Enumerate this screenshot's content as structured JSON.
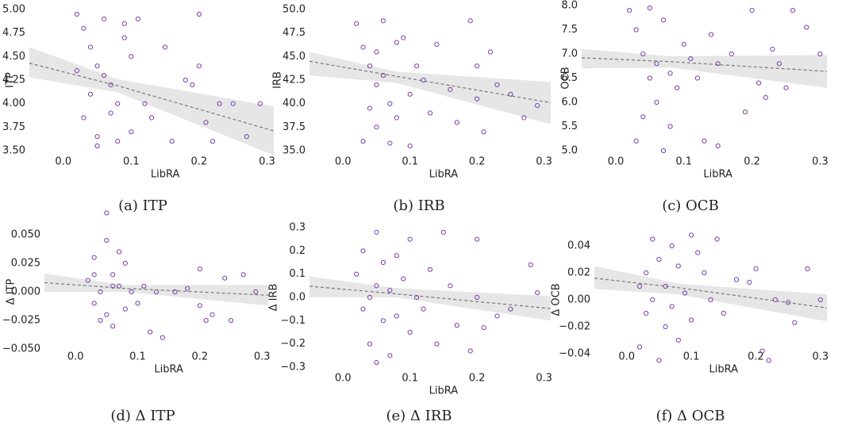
{
  "chart_data": [
    {
      "type": "scatter",
      "caption": "(a) ITP",
      "x_label": "LibRA",
      "y_label": "ITP",
      "color": "#7b3fa8",
      "xlim": [
        -0.05,
        0.31
      ],
      "ylim": [
        3.5,
        5.0
      ],
      "xticks": [
        {
          "value": 0,
          "label": "0.0"
        },
        0.1,
        0.2,
        0.3
      ],
      "yticks": [
        {
          "value": 3.5,
          "label": "3.50"
        },
        3.75,
        {
          "value": 4.0,
          "label": "4.00"
        },
        4.25,
        {
          "value": 4.5,
          "label": "4.50"
        },
        4.75,
        {
          "value": 5.0,
          "label": "5.00"
        }
      ],
      "x": [
        0.02,
        0.03,
        0.04,
        0.05,
        0.06,
        0.07,
        0.08,
        0.09,
        0.1,
        0.03,
        0.05,
        0.04,
        0.07,
        0.06,
        0.02,
        0.12,
        0.13,
        0.11,
        0.15,
        0.16,
        0.18,
        0.2,
        0.21,
        0.19,
        0.22,
        0.23,
        0.25,
        0.27,
        0.29,
        0.08,
        0.09,
        0.1,
        0.05,
        0.2
      ],
      "values": [
        4.95,
        4.8,
        4.6,
        4.4,
        4.9,
        4.2,
        4.0,
        4.7,
        4.5,
        3.85,
        3.65,
        4.1,
        3.9,
        4.3,
        4.35,
        4.0,
        3.85,
        4.9,
        4.6,
        3.6,
        4.25,
        4.95,
        3.8,
        4.2,
        3.6,
        4.0,
        4.0,
        3.65,
        4.0,
        3.6,
        4.85,
        3.7,
        3.55,
        4.4
      ],
      "trend_x": [
        -0.05,
        0.08,
        0.31
      ],
      "trend_y": [
        4.43,
        4.19,
        3.71
      ],
      "band_lower": [
        4.28,
        4.12,
        3.45
      ],
      "band_upper": [
        4.6,
        4.26,
        3.97
      ]
    },
    {
      "type": "scatter",
      "caption": "(b) IRB",
      "x_label": "LibRA",
      "y_label": "IRB",
      "color": "#7b3fa8",
      "xlim": [
        -0.05,
        0.31
      ],
      "ylim": [
        35,
        50
      ],
      "xticks": [
        {
          "value": 0,
          "label": "0.0"
        },
        0.1,
        0.2,
        0.3
      ],
      "yticks": [
        {
          "value": 35,
          "label": "35.0"
        },
        37.5,
        {
          "value": 40,
          "label": "40.0"
        },
        42.5,
        {
          "value": 45,
          "label": "45.0"
        },
        47.5,
        {
          "value": 50,
          "label": "50.0"
        }
      ],
      "x": [
        0.02,
        0.03,
        0.04,
        0.05,
        0.06,
        0.07,
        0.08,
        0.03,
        0.05,
        0.06,
        0.09,
        0.1,
        0.04,
        0.07,
        0.11,
        0.12,
        0.14,
        0.13,
        0.16,
        0.17,
        0.19,
        0.2,
        0.2,
        0.21,
        0.22,
        0.23,
        0.25,
        0.27,
        0.29,
        0.08,
        0.05,
        0.1
      ],
      "values": [
        48.5,
        46,
        44,
        42,
        48.8,
        40,
        38.5,
        36,
        45.5,
        43,
        47,
        41,
        39.5,
        35.8,
        44,
        42.5,
        46.3,
        39,
        41.5,
        38,
        48.8,
        44,
        40.5,
        37,
        45.5,
        42,
        41,
        38.5,
        39.8,
        46.5,
        37.5,
        35.5
      ],
      "trend_x": [
        -0.05,
        0.08,
        0.31
      ],
      "trend_y": [
        44.5,
        42.9,
        40.1
      ],
      "band_lower": [
        43.0,
        42.2,
        37.8
      ],
      "band_upper": [
        45.5,
        43.4,
        42.3
      ]
    },
    {
      "type": "scatter",
      "caption": "(c) OCB",
      "x_label": "LibRA",
      "y_label": "OCB",
      "color": "#7b3fa8",
      "xlim": [
        -0.05,
        0.31
      ],
      "ylim": [
        5,
        8
      ],
      "xticks": [
        {
          "value": 0,
          "label": "0.0"
        },
        0.1,
        0.2,
        0.3
      ],
      "yticks": [
        {
          "value": 5,
          "label": "5.0"
        },
        5.5,
        {
          "value": 6,
          "label": "6.0"
        },
        6.5,
        {
          "value": 7,
          "label": "7.0"
        },
        7.5,
        {
          "value": 8,
          "label": "8.0"
        }
      ],
      "x": [
        0.02,
        0.03,
        0.04,
        0.05,
        0.06,
        0.07,
        0.08,
        0.03,
        0.05,
        0.06,
        0.09,
        0.1,
        0.04,
        0.07,
        0.11,
        0.12,
        0.13,
        0.14,
        0.15,
        0.15,
        0.17,
        0.19,
        0.2,
        0.21,
        0.22,
        0.23,
        0.24,
        0.25,
        0.26,
        0.28,
        0.3,
        0.08
      ],
      "values": [
        7.9,
        7.5,
        7.0,
        6.5,
        6.0,
        7.7,
        5.5,
        5.2,
        7.95,
        6.8,
        6.3,
        7.2,
        5.7,
        5.0,
        6.9,
        6.5,
        5.2,
        7.4,
        6.8,
        5.1,
        7.0,
        5.8,
        7.9,
        6.4,
        6.1,
        7.1,
        6.8,
        6.3,
        7.9,
        7.55,
        7.0,
        6.6
      ],
      "trend_x": [
        -0.05,
        0.08,
        0.31
      ],
      "trend_y": [
        6.92,
        6.84,
        6.64
      ],
      "band_lower": [
        6.7,
        6.72,
        6.3
      ],
      "band_upper": [
        7.1,
        6.95,
        6.98
      ]
    },
    {
      "type": "scatter",
      "caption": "(d) Δ ITP",
      "x_label": "LibRA",
      "y_label": "Δ ITP",
      "color": "#7b3fa8",
      "xlim": [
        -0.05,
        0.31
      ],
      "ylim": [
        -0.07,
        0.07
      ],
      "xticks": [
        {
          "value": 0,
          "label": "0.0"
        },
        0.1,
        0.2,
        0.3
      ],
      "yticks": [
        {
          "value": -0.05,
          "label": "−0.050"
        },
        {
          "value": -0.025,
          "label": "−0.025"
        },
        {
          "value": 0,
          "label": "0.000"
        },
        0.025,
        {
          "value": 0.05,
          "label": "0.050"
        }
      ],
      "x": [
        0.02,
        0.03,
        0.03,
        0.04,
        0.05,
        0.05,
        0.06,
        0.06,
        0.07,
        0.07,
        0.08,
        0.08,
        0.09,
        0.05,
        0.04,
        0.1,
        0.11,
        0.12,
        0.13,
        0.14,
        0.16,
        0.18,
        0.2,
        0.2,
        0.21,
        0.22,
        0.24,
        0.25,
        0.27,
        0.29,
        0.03,
        0.06
      ],
      "values": [
        0.01,
        -0.01,
        0.03,
        0.0,
        0.045,
        -0.02,
        0.015,
        -0.03,
        0.005,
        0.035,
        -0.015,
        0.025,
        0.0,
        0.069,
        -0.025,
        -0.01,
        0.005,
        -0.035,
        0.0,
        -0.04,
        0.0,
        0.003,
        0.02,
        -0.012,
        -0.025,
        -0.02,
        0.012,
        -0.025,
        0.015,
        0.0,
        0.015,
        0.005
      ],
      "trend_x": [
        -0.05,
        0.08,
        0.31
      ],
      "trend_y": [
        0.008,
        0.003,
        -0.003
      ],
      "band_lower": [
        0.0,
        0.0,
        -0.012
      ],
      "band_upper": [
        0.016,
        0.006,
        0.006
      ]
    },
    {
      "type": "scatter",
      "caption": "(e) Δ IRB",
      "x_label": "LibRA",
      "y_label": "Δ IRB",
      "color": "#7b3fa8",
      "xlim": [
        -0.05,
        0.31
      ],
      "ylim": [
        -0.3,
        0.3
      ],
      "xticks": [
        {
          "value": 0,
          "label": "0.0"
        },
        0.1,
        0.2,
        0.3
      ],
      "yticks": [
        {
          "value": -0.3,
          "label": "−0.3"
        },
        {
          "value": -0.2,
          "label": "−0.2"
        },
        {
          "value": -0.1,
          "label": "−0.1"
        },
        {
          "value": 0,
          "label": "0.0"
        },
        0.1,
        0.2,
        0.3
      ],
      "x": [
        0.02,
        0.03,
        0.03,
        0.04,
        0.04,
        0.05,
        0.05,
        0.06,
        0.06,
        0.07,
        0.07,
        0.08,
        0.08,
        0.09,
        0.1,
        0.1,
        0.11,
        0.12,
        0.13,
        0.14,
        0.15,
        0.16,
        0.17,
        0.19,
        0.2,
        0.2,
        0.21,
        0.23,
        0.25,
        0.28,
        0.29,
        0.05
      ],
      "values": [
        0.1,
        -0.05,
        0.2,
        0.0,
        -0.2,
        0.28,
        0.05,
        -0.1,
        0.15,
        -0.25,
        0.03,
        0.18,
        -0.08,
        0.08,
        -0.15,
        0.25,
        0.0,
        -0.05,
        0.12,
        -0.2,
        0.28,
        0.05,
        -0.12,
        -0.23,
        0.25,
        0.0,
        -0.13,
        -0.08,
        -0.05,
        0.14,
        0.02,
        -0.28
      ],
      "trend_x": [
        -0.05,
        0.08,
        0.31
      ],
      "trend_y": [
        0.048,
        0.015,
        -0.048
      ],
      "band_lower": [
        0.0,
        0.0,
        -0.1
      ],
      "band_upper": [
        0.09,
        0.04,
        0.005
      ]
    },
    {
      "type": "scatter",
      "caption": "(f) Δ OCB",
      "x_label": "LibRA",
      "y_label": "Δ OCB",
      "color": "#7b3fa8",
      "xlim": [
        -0.05,
        0.31
      ],
      "ylim": [
        -0.05,
        0.05
      ],
      "xticks": [
        {
          "value": 0,
          "label": "0.0"
        },
        0.1,
        0.2,
        0.3
      ],
      "yticks": [
        {
          "value": -0.04,
          "label": "−0.04"
        },
        {
          "value": -0.02,
          "label": "−0.02"
        },
        {
          "value": 0,
          "label": "0.00"
        },
        0.02,
        0.04
      ],
      "x": [
        0.02,
        0.02,
        0.03,
        0.03,
        0.04,
        0.04,
        0.05,
        0.05,
        0.06,
        0.06,
        0.07,
        0.07,
        0.08,
        0.08,
        0.09,
        0.1,
        0.1,
        0.11,
        0.12,
        0.13,
        0.14,
        0.15,
        0.17,
        0.19,
        0.2,
        0.21,
        0.22,
        0.23,
        0.26,
        0.25,
        0.28,
        0.3
      ],
      "values": [
        0.01,
        -0.035,
        0.02,
        -0.01,
        0.045,
        0.0,
        -0.045,
        0.03,
        0.01,
        -0.02,
        0.04,
        -0.005,
        0.025,
        -0.03,
        0.005,
        0.048,
        -0.015,
        0.035,
        0.02,
        0.0,
        0.045,
        -0.01,
        0.015,
        0.013,
        0.023,
        -0.038,
        -0.045,
        0.0,
        -0.017,
        -0.002,
        0.023,
        0.0
      ],
      "trend_x": [
        -0.05,
        0.08,
        0.31
      ],
      "trend_y": [
        0.016,
        0.009,
        -0.006
      ],
      "band_lower": [
        0.008,
        0.004,
        -0.016
      ],
      "band_upper": [
        0.025,
        0.012,
        0.004
      ]
    }
  ]
}
